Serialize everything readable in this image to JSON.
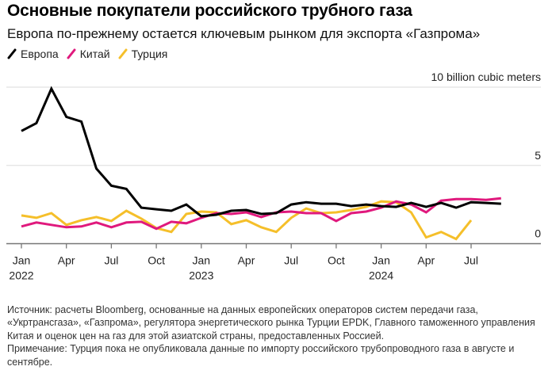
{
  "header": {
    "title": "Основные покупатели российского трубного газа",
    "subtitle": "Европа по-прежнему остается ключевым рынком для экспорта «Газпрома»"
  },
  "legend": [
    {
      "label": "Европа",
      "color": "#000000",
      "icon": "slash-swatch-icon"
    },
    {
      "label": "Китай",
      "color": "#e0197d",
      "icon": "slash-swatch-icon"
    },
    {
      "label": "Турция",
      "color": "#f5bf2a",
      "icon": "slash-swatch-icon"
    }
  ],
  "footnote": {
    "source": "Источник: расчеты Bloomberg, основанные на данных европейских операторов систем передачи газа, «Укртрансгаза», «Газпрома», регулятора энергетического рынка Турции EPDK, Главного таможенного управления Китая и оценок цен на газ для этой азиатской страны, предоставленных Россией.",
    "note": "Примечание: Турция пока не опубликовала данные по импорту российского трубопроводного газа в августе и сентябре."
  },
  "chart_data": {
    "type": "line",
    "title": "Основные покупатели российского трубного газа",
    "subtitle": "Европа по-прежнему остается ключевым рынком для экспорта «Газпрома»",
    "ylabel": "billion cubic meters",
    "unit_label": "10 billion cubic meters",
    "ylim": [
      0,
      10
    ],
    "yticks": [
      {
        "value": 0,
        "label": "0"
      },
      {
        "value": 5,
        "label": "5"
      },
      {
        "value": 10,
        "label": "10 billion cubic meters"
      }
    ],
    "grid": true,
    "legend_position": "top-left",
    "x": [
      "2022-01",
      "2022-02",
      "2022-03",
      "2022-04",
      "2022-05",
      "2022-06",
      "2022-07",
      "2022-08",
      "2022-09",
      "2022-10",
      "2022-11",
      "2022-12",
      "2023-01",
      "2023-02",
      "2023-03",
      "2023-04",
      "2023-05",
      "2023-06",
      "2023-07",
      "2023-08",
      "2023-09",
      "2023-10",
      "2023-11",
      "2023-12",
      "2024-01",
      "2024-02",
      "2024-03",
      "2024-04",
      "2024-05",
      "2024-06",
      "2024-07",
      "2024-08",
      "2024-09"
    ],
    "xticks": [
      {
        "index": 0,
        "label": "Jan",
        "year": "2022"
      },
      {
        "index": 3,
        "label": "Apr",
        "year": ""
      },
      {
        "index": 6,
        "label": "Jul",
        "year": ""
      },
      {
        "index": 9,
        "label": "Oct",
        "year": ""
      },
      {
        "index": 12,
        "label": "Jan",
        "year": "2023"
      },
      {
        "index": 15,
        "label": "Apr",
        "year": ""
      },
      {
        "index": 18,
        "label": "Jul",
        "year": ""
      },
      {
        "index": 21,
        "label": "Oct",
        "year": ""
      },
      {
        "index": 24,
        "label": "Jan",
        "year": "2024"
      },
      {
        "index": 27,
        "label": "Apr",
        "year": ""
      },
      {
        "index": 30,
        "label": "Jul",
        "year": ""
      }
    ],
    "series": [
      {
        "name": "Европа",
        "color": "#000000",
        "values": [
          7.2,
          7.7,
          9.9,
          8.1,
          7.8,
          4.8,
          3.7,
          3.5,
          2.3,
          2.2,
          2.1,
          2.5,
          1.75,
          1.85,
          2.1,
          2.15,
          1.9,
          1.95,
          2.5,
          2.65,
          2.55,
          2.55,
          2.4,
          2.5,
          2.4,
          2.35,
          2.6,
          2.35,
          2.6,
          2.3,
          2.65,
          2.6,
          2.55
        ]
      },
      {
        "name": "Китай",
        "color": "#e0197d",
        "values": [
          1.1,
          1.35,
          1.2,
          1.05,
          1.1,
          1.35,
          1.05,
          1.35,
          1.4,
          0.95,
          1.4,
          1.3,
          1.65,
          1.95,
          1.9,
          2.0,
          1.7,
          2.0,
          2.05,
          1.95,
          1.95,
          1.45,
          1.95,
          2.05,
          2.3,
          2.7,
          2.5,
          2.0,
          2.75,
          2.85,
          2.85,
          2.8,
          2.9
        ]
      },
      {
        "name": "Турция",
        "color": "#f5bf2a",
        "values": [
          1.8,
          1.65,
          1.95,
          1.2,
          1.5,
          1.7,
          1.45,
          2.1,
          1.6,
          1.0,
          0.75,
          1.9,
          2.05,
          2.0,
          1.25,
          1.5,
          1.05,
          0.75,
          1.65,
          2.25,
          1.95,
          2.0,
          2.15,
          2.35,
          2.7,
          2.65,
          2.0,
          0.4,
          0.75,
          0.3,
          1.5,
          null,
          null
        ]
      }
    ]
  }
}
